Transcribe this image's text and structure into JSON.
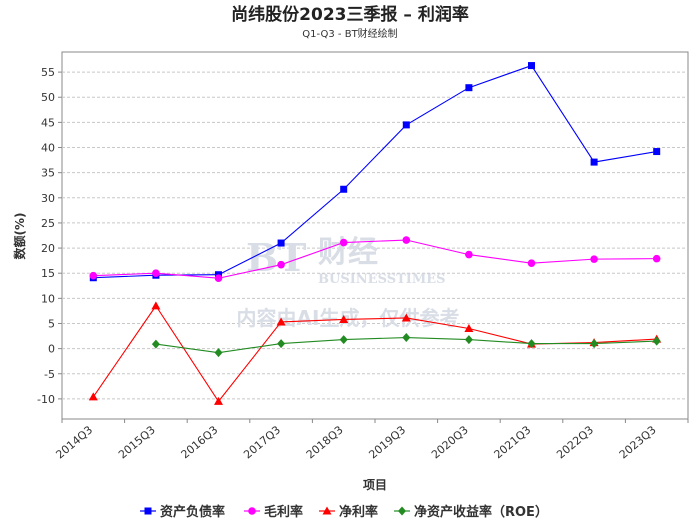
{
  "chart_data": {
    "type": "line",
    "title": "尚纬股份2023三季报 – 利润率",
    "subtitle": "Q1-Q3 - BT财经绘制",
    "xlabel": "项目",
    "ylabel": "数额(%)",
    "categories": [
      "2014Q3",
      "2015Q3",
      "2016Q3",
      "2017Q3",
      "2018Q3",
      "2019Q3",
      "2020Q3",
      "2021Q3",
      "2022Q3",
      "2023Q3"
    ],
    "ylim": [
      -14,
      59
    ],
    "yticks": [
      -10,
      -5,
      0,
      5,
      10,
      15,
      20,
      25,
      30,
      35,
      40,
      45,
      50,
      55
    ],
    "grid": true,
    "legend_position": "bottom",
    "series": [
      {
        "name": "资产负债率",
        "color": "#0000ff",
        "marker": "square",
        "values": [
          14.1,
          14.6,
          14.7,
          21.0,
          31.7,
          44.5,
          51.9,
          56.3,
          37.1,
          39.2
        ]
      },
      {
        "name": "毛利率",
        "color": "#ff00ff",
        "marker": "circle",
        "values": [
          14.5,
          15.0,
          14.0,
          16.7,
          21.1,
          21.6,
          18.7,
          17.0,
          17.8,
          17.9
        ]
      },
      {
        "name": "净利率",
        "color": "#ff0000",
        "marker": "triangle",
        "values": [
          -9.6,
          8.5,
          -10.5,
          5.3,
          5.8,
          6.1,
          4.0,
          0.9,
          1.2,
          1.9
        ]
      },
      {
        "name": "净资产收益率（ROE）",
        "color": "#228b22",
        "marker": "diamond",
        "values": [
          null,
          0.9,
          -0.8,
          1.0,
          1.8,
          2.2,
          1.8,
          1.0,
          1.0,
          1.5
        ]
      }
    ]
  },
  "watermark": {
    "logo": "BT",
    "brand_cn": "财经",
    "brand_en": "BUSINESSTIMES",
    "notice": "内容由AI生成，仅供参考"
  }
}
